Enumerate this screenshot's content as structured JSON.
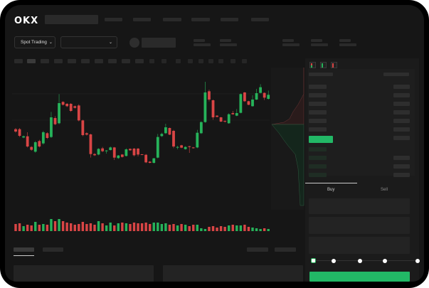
{
  "header": {
    "logo": "OKX"
  },
  "toolbar": {
    "market_select": "Spot Trading"
  },
  "trade": {
    "buy_tab": "Buy",
    "sell_tab": "Sell"
  },
  "colors": {
    "up": "#26b35a",
    "down": "#d94545",
    "accent": "#22b866"
  },
  "chart_data": {
    "type": "candlestick",
    "ylim": [
      0,
      400
    ],
    "ohlc": [
      [
        185,
        190,
        170,
        175
      ],
      [
        185,
        190,
        152,
        157
      ],
      [
        150,
        158,
        147,
        155
      ],
      [
        155,
        172,
        108,
        112
      ],
      [
        110,
        113,
        94,
        98
      ],
      [
        90,
        135,
        86,
        130
      ],
      [
        135,
        140,
        108,
        112
      ],
      [
        125,
        178,
        120,
        172
      ],
      [
        168,
        172,
        144,
        148
      ],
      [
        152,
        258,
        148,
        235
      ],
      [
        232,
        240,
        202,
        206
      ],
      [
        210,
        333,
        206,
        295
      ],
      [
        300,
        303,
        285,
        288
      ],
      [
        292,
        295,
        278,
        282
      ],
      [
        292,
        295,
        258,
        262
      ],
      [
        282,
        285,
        272,
        275
      ],
      [
        285,
        290,
        218,
        222
      ],
      [
        222,
        225,
        155,
        160
      ],
      [
        168,
        172,
        158,
        162
      ],
      [
        163,
        166,
        65,
        80
      ],
      [
        80,
        84,
        72,
        75
      ],
      [
        78,
        105,
        75,
        102
      ],
      [
        104,
        110,
        88,
        92
      ],
      [
        92,
        97,
        82,
        95
      ],
      [
        97,
        112,
        95,
        108
      ],
      [
        108,
        110,
        55,
        65
      ],
      [
        63,
        76,
        60,
        74
      ],
      [
        78,
        80,
        65,
        68
      ],
      [
        72,
        104,
        70,
        100
      ],
      [
        102,
        104,
        94,
        96
      ],
      [
        103,
        106,
        70,
        75
      ],
      [
        103,
        106,
        70,
        78
      ],
      [
        79,
        80,
        76,
        77
      ],
      [
        77,
        80,
        42,
        45
      ],
      [
        48,
        50,
        41,
        43
      ],
      [
        43,
        64,
        40,
        62
      ],
      [
        65,
        165,
        62,
        152
      ],
      [
        156,
        170,
        152,
        165
      ],
      [
        168,
        208,
        165,
        193
      ],
      [
        190,
        192,
        160,
        162
      ],
      [
        178,
        182,
        105,
        112
      ],
      [
        108,
        115,
        100,
        110
      ],
      [
        117,
        119,
        105,
        107
      ],
      [
        101,
        113,
        99,
        110
      ],
      [
        113,
        115,
        85,
        111
      ],
      [
        108,
        110,
        103,
        105
      ],
      [
        108,
        182,
        105,
        170
      ],
      [
        168,
        218,
        165,
        215
      ],
      [
        215,
        385,
        212,
        340
      ],
      [
        345,
        352,
        302,
        310
      ],
      [
        307,
        310,
        225,
        235
      ],
      [
        242,
        244,
        235,
        237
      ],
      [
        235,
        237,
        215,
        217
      ],
      [
        220,
        222,
        212,
        217
      ],
      [
        210,
        252,
        208,
        248
      ],
      [
        253,
        262,
        246,
        248
      ],
      [
        242,
        270,
        240,
        253
      ],
      [
        254,
        336,
        252,
        333
      ],
      [
        340,
        342,
        300,
        303
      ],
      [
        303,
        305,
        286,
        288
      ],
      [
        282,
        328,
        280,
        310
      ],
      [
        310,
        355,
        308,
        337
      ],
      [
        338,
        375,
        336,
        362
      ],
      [
        338,
        340,
        308,
        318
      ],
      [
        313,
        348,
        310,
        330
      ]
    ],
    "volume": [
      10,
      11,
      7,
      9,
      8,
      13,
      9,
      10,
      9,
      17,
      14,
      17,
      14,
      12,
      11,
      9,
      10,
      13,
      10,
      11,
      9,
      14,
      11,
      8,
      12,
      8,
      11,
      12,
      11,
      10,
      12,
      11,
      11,
      12,
      10,
      12,
      12,
      10,
      11,
      9,
      10,
      8,
      10,
      9,
      7,
      9,
      9,
      4,
      3,
      6,
      7,
      5,
      7,
      6,
      8,
      9,
      8,
      8,
      9,
      6,
      5,
      4,
      3,
      4,
      3
    ]
  }
}
